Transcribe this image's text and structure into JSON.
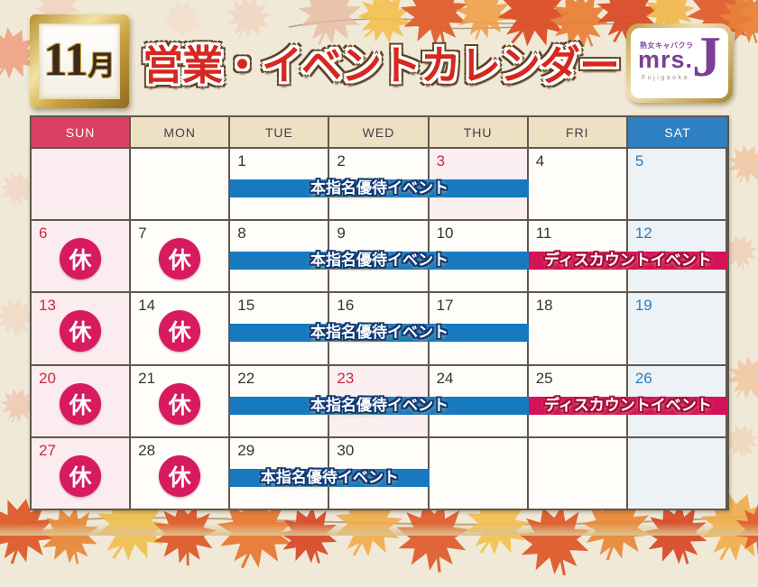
{
  "page": {
    "month_number": "11",
    "month_suffix": "月",
    "title": "営業・イベントカレンダー"
  },
  "logo": {
    "tagline": "熟女キャバクラ",
    "name": "mrs.",
    "initial": "J",
    "location": "Fujigaoka"
  },
  "colors": {
    "blue_event": "#1779c0",
    "red_event": "#d41257",
    "closed_badge": "#d81a5e",
    "sun_header": "#d94062",
    "sat_header": "#2f80c3",
    "weekday_header": "#eee1c3"
  },
  "calendar": {
    "closed_label": "休",
    "day_headers": [
      {
        "label": "SUN",
        "type": "sun"
      },
      {
        "label": "MON",
        "type": "weekday"
      },
      {
        "label": "TUE",
        "type": "weekday"
      },
      {
        "label": "WED",
        "type": "weekday"
      },
      {
        "label": "THU",
        "type": "weekday"
      },
      {
        "label": "FRI",
        "type": "weekday"
      },
      {
        "label": "SAT",
        "type": "sat"
      }
    ],
    "weeks": [
      {
        "cells": [
          {
            "day": "",
            "type": "sun",
            "closed": false
          },
          {
            "day": "",
            "type": "weekday",
            "closed": false
          },
          {
            "day": "1",
            "type": "weekday",
            "closed": false
          },
          {
            "day": "2",
            "type": "weekday",
            "closed": false
          },
          {
            "day": "3",
            "type": "holiday",
            "closed": false
          },
          {
            "day": "4",
            "type": "weekday",
            "closed": false
          },
          {
            "day": "5",
            "type": "sat",
            "closed": false
          }
        ],
        "events": [
          {
            "label": "本指名優待イベント",
            "color": "blue",
            "start": 2,
            "end": 4
          }
        ]
      },
      {
        "cells": [
          {
            "day": "6",
            "type": "sun",
            "closed": true
          },
          {
            "day": "7",
            "type": "weekday",
            "closed": true
          },
          {
            "day": "8",
            "type": "weekday",
            "closed": false
          },
          {
            "day": "9",
            "type": "weekday",
            "closed": false
          },
          {
            "day": "10",
            "type": "weekday",
            "closed": false
          },
          {
            "day": "11",
            "type": "weekday",
            "closed": false
          },
          {
            "day": "12",
            "type": "sat",
            "closed": false
          }
        ],
        "events": [
          {
            "label": "本指名優待イベント",
            "color": "blue",
            "start": 2,
            "end": 4
          },
          {
            "label": "ディスカウントイベント",
            "color": "red",
            "start": 5,
            "end": 6
          }
        ]
      },
      {
        "cells": [
          {
            "day": "13",
            "type": "sun",
            "closed": true
          },
          {
            "day": "14",
            "type": "weekday",
            "closed": true
          },
          {
            "day": "15",
            "type": "weekday",
            "closed": false
          },
          {
            "day": "16",
            "type": "weekday",
            "closed": false
          },
          {
            "day": "17",
            "type": "weekday",
            "closed": false
          },
          {
            "day": "18",
            "type": "weekday",
            "closed": false
          },
          {
            "day": "19",
            "type": "sat",
            "closed": false
          }
        ],
        "events": [
          {
            "label": "本指名優待イベント",
            "color": "blue",
            "start": 2,
            "end": 4
          }
        ]
      },
      {
        "cells": [
          {
            "day": "20",
            "type": "sun",
            "closed": true
          },
          {
            "day": "21",
            "type": "weekday",
            "closed": true
          },
          {
            "day": "22",
            "type": "weekday",
            "closed": false
          },
          {
            "day": "23",
            "type": "holiday",
            "closed": false
          },
          {
            "day": "24",
            "type": "weekday",
            "closed": false
          },
          {
            "day": "25",
            "type": "weekday",
            "closed": false
          },
          {
            "day": "26",
            "type": "sat",
            "closed": false
          }
        ],
        "events": [
          {
            "label": "本指名優待イベント",
            "color": "blue",
            "start": 2,
            "end": 4
          },
          {
            "label": "ディスカウントイベント",
            "color": "red",
            "start": 5,
            "end": 6
          }
        ]
      },
      {
        "cells": [
          {
            "day": "27",
            "type": "sun",
            "closed": true
          },
          {
            "day": "28",
            "type": "weekday",
            "closed": true
          },
          {
            "day": "29",
            "type": "weekday",
            "closed": false
          },
          {
            "day": "30",
            "type": "weekday",
            "closed": false
          },
          {
            "day": "",
            "type": "weekday",
            "closed": false
          },
          {
            "day": "",
            "type": "weekday",
            "closed": false
          },
          {
            "day": "",
            "type": "sat",
            "closed": false
          }
        ],
        "events": [
          {
            "label": "本指名優待イベント",
            "color": "blue",
            "start": 2,
            "end": 3
          }
        ]
      }
    ]
  }
}
